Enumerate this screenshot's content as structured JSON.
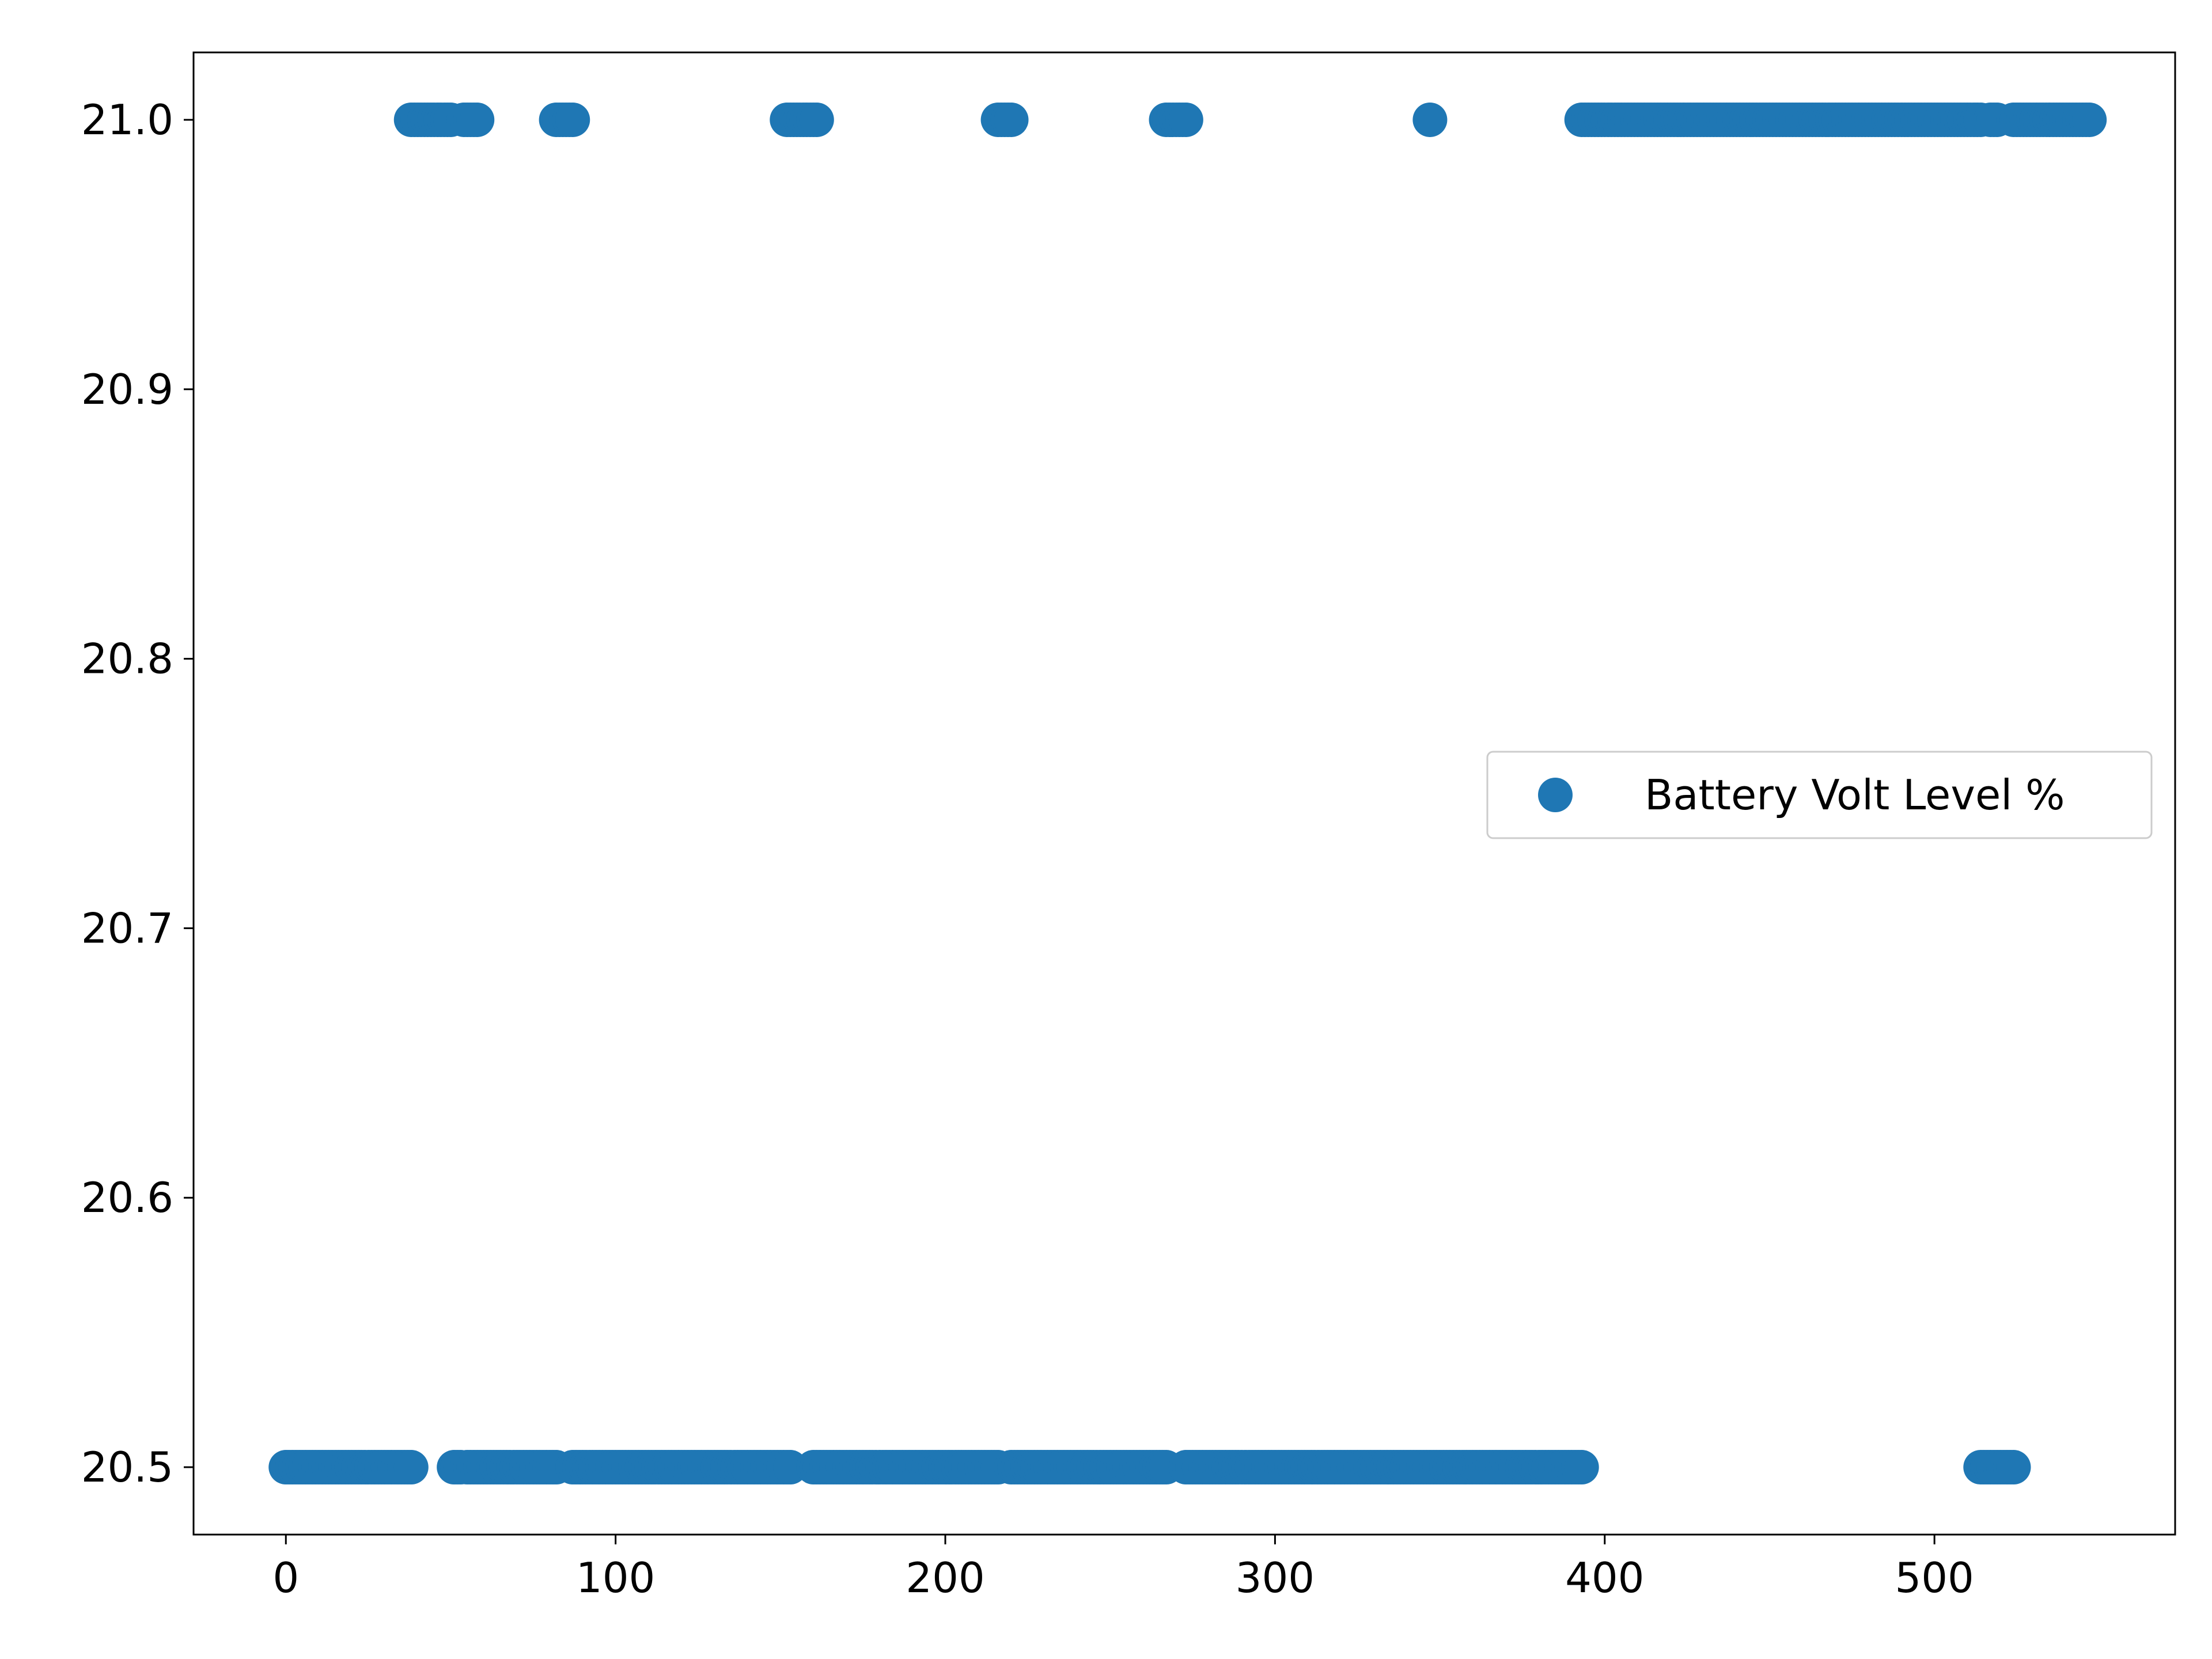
{
  "chart_data": {
    "type": "scatter",
    "title": "",
    "xlabel": "",
    "ylabel": "",
    "xlim": [
      -28,
      573
    ],
    "ylim": [
      20.475,
      21.025
    ],
    "xticks": [
      0,
      100,
      200,
      300,
      400,
      500
    ],
    "yticks": [
      20.5,
      20.6,
      20.7,
      20.8,
      20.9,
      21.0
    ],
    "xtick_labels": [
      "0",
      "100",
      "200",
      "300",
      "400",
      "500"
    ],
    "ytick_labels": [
      "20.5",
      "20.6",
      "20.7",
      "20.8",
      "20.9",
      "21.0"
    ],
    "grid": false,
    "legend": {
      "location": "center right"
    },
    "series": [
      {
        "name": "Battery Volt Level %",
        "color": "#1f77b4",
        "marker": "circle",
        "segments": [
          {
            "y": 20.5,
            "x_from": 0,
            "x_to": 38
          },
          {
            "y": 21.0,
            "x_from": 38,
            "x_to": 50
          },
          {
            "y": 21.0,
            "x_from": 54,
            "x_to": 58
          },
          {
            "y": 20.5,
            "x_from": 51,
            "x_to": 53
          },
          {
            "y": 20.5,
            "x_from": 55,
            "x_to": 82
          },
          {
            "y": 21.0,
            "x_from": 82,
            "x_to": 87
          },
          {
            "y": 20.5,
            "x_from": 87,
            "x_to": 153
          },
          {
            "y": 21.0,
            "x_from": 152,
            "x_to": 161
          },
          {
            "y": 20.5,
            "x_from": 160,
            "x_to": 216
          },
          {
            "y": 21.0,
            "x_from": 216,
            "x_to": 220
          },
          {
            "y": 20.5,
            "x_from": 220,
            "x_to": 267
          },
          {
            "y": 21.0,
            "x_from": 267,
            "x_to": 273
          },
          {
            "y": 20.5,
            "x_from": 273,
            "x_to": 346
          },
          {
            "y": 21.0,
            "x_from": 347,
            "x_to": 347
          },
          {
            "y": 20.5,
            "x_from": 347,
            "x_to": 393
          },
          {
            "y": 21.0,
            "x_from": 393,
            "x_to": 514
          },
          {
            "y": 20.5,
            "x_from": 514,
            "x_to": 524
          },
          {
            "y": 21.0,
            "x_from": 517,
            "x_to": 519
          },
          {
            "y": 21.0,
            "x_from": 524,
            "x_to": 547
          }
        ]
      }
    ]
  }
}
